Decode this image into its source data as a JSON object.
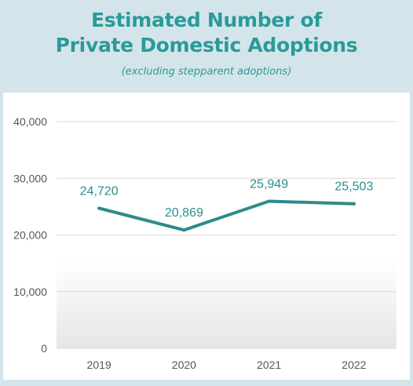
{
  "chart_data": {
    "type": "line",
    "title": "Estimated Number of Private Domestic Adoptions",
    "title_lines": [
      "Estimated Number of",
      "Private Domestic Adoptions"
    ],
    "subtitle": "(excluding stepparent adoptions)",
    "categories": [
      "2019",
      "2020",
      "2021",
      "2022"
    ],
    "values": [
      24720,
      20869,
      25949,
      25503
    ],
    "data_labels": [
      "24,720",
      "20,869",
      "25,949",
      "25,503"
    ],
    "y_ticks": [
      0,
      10000,
      20000,
      30000,
      40000
    ],
    "y_tick_labels": [
      "0",
      "10,000",
      "20,000",
      "30,000",
      "40,000"
    ],
    "ylim": [
      0,
      40000
    ],
    "grid": true,
    "legend": "none",
    "line_color": "#2e8b8b"
  }
}
